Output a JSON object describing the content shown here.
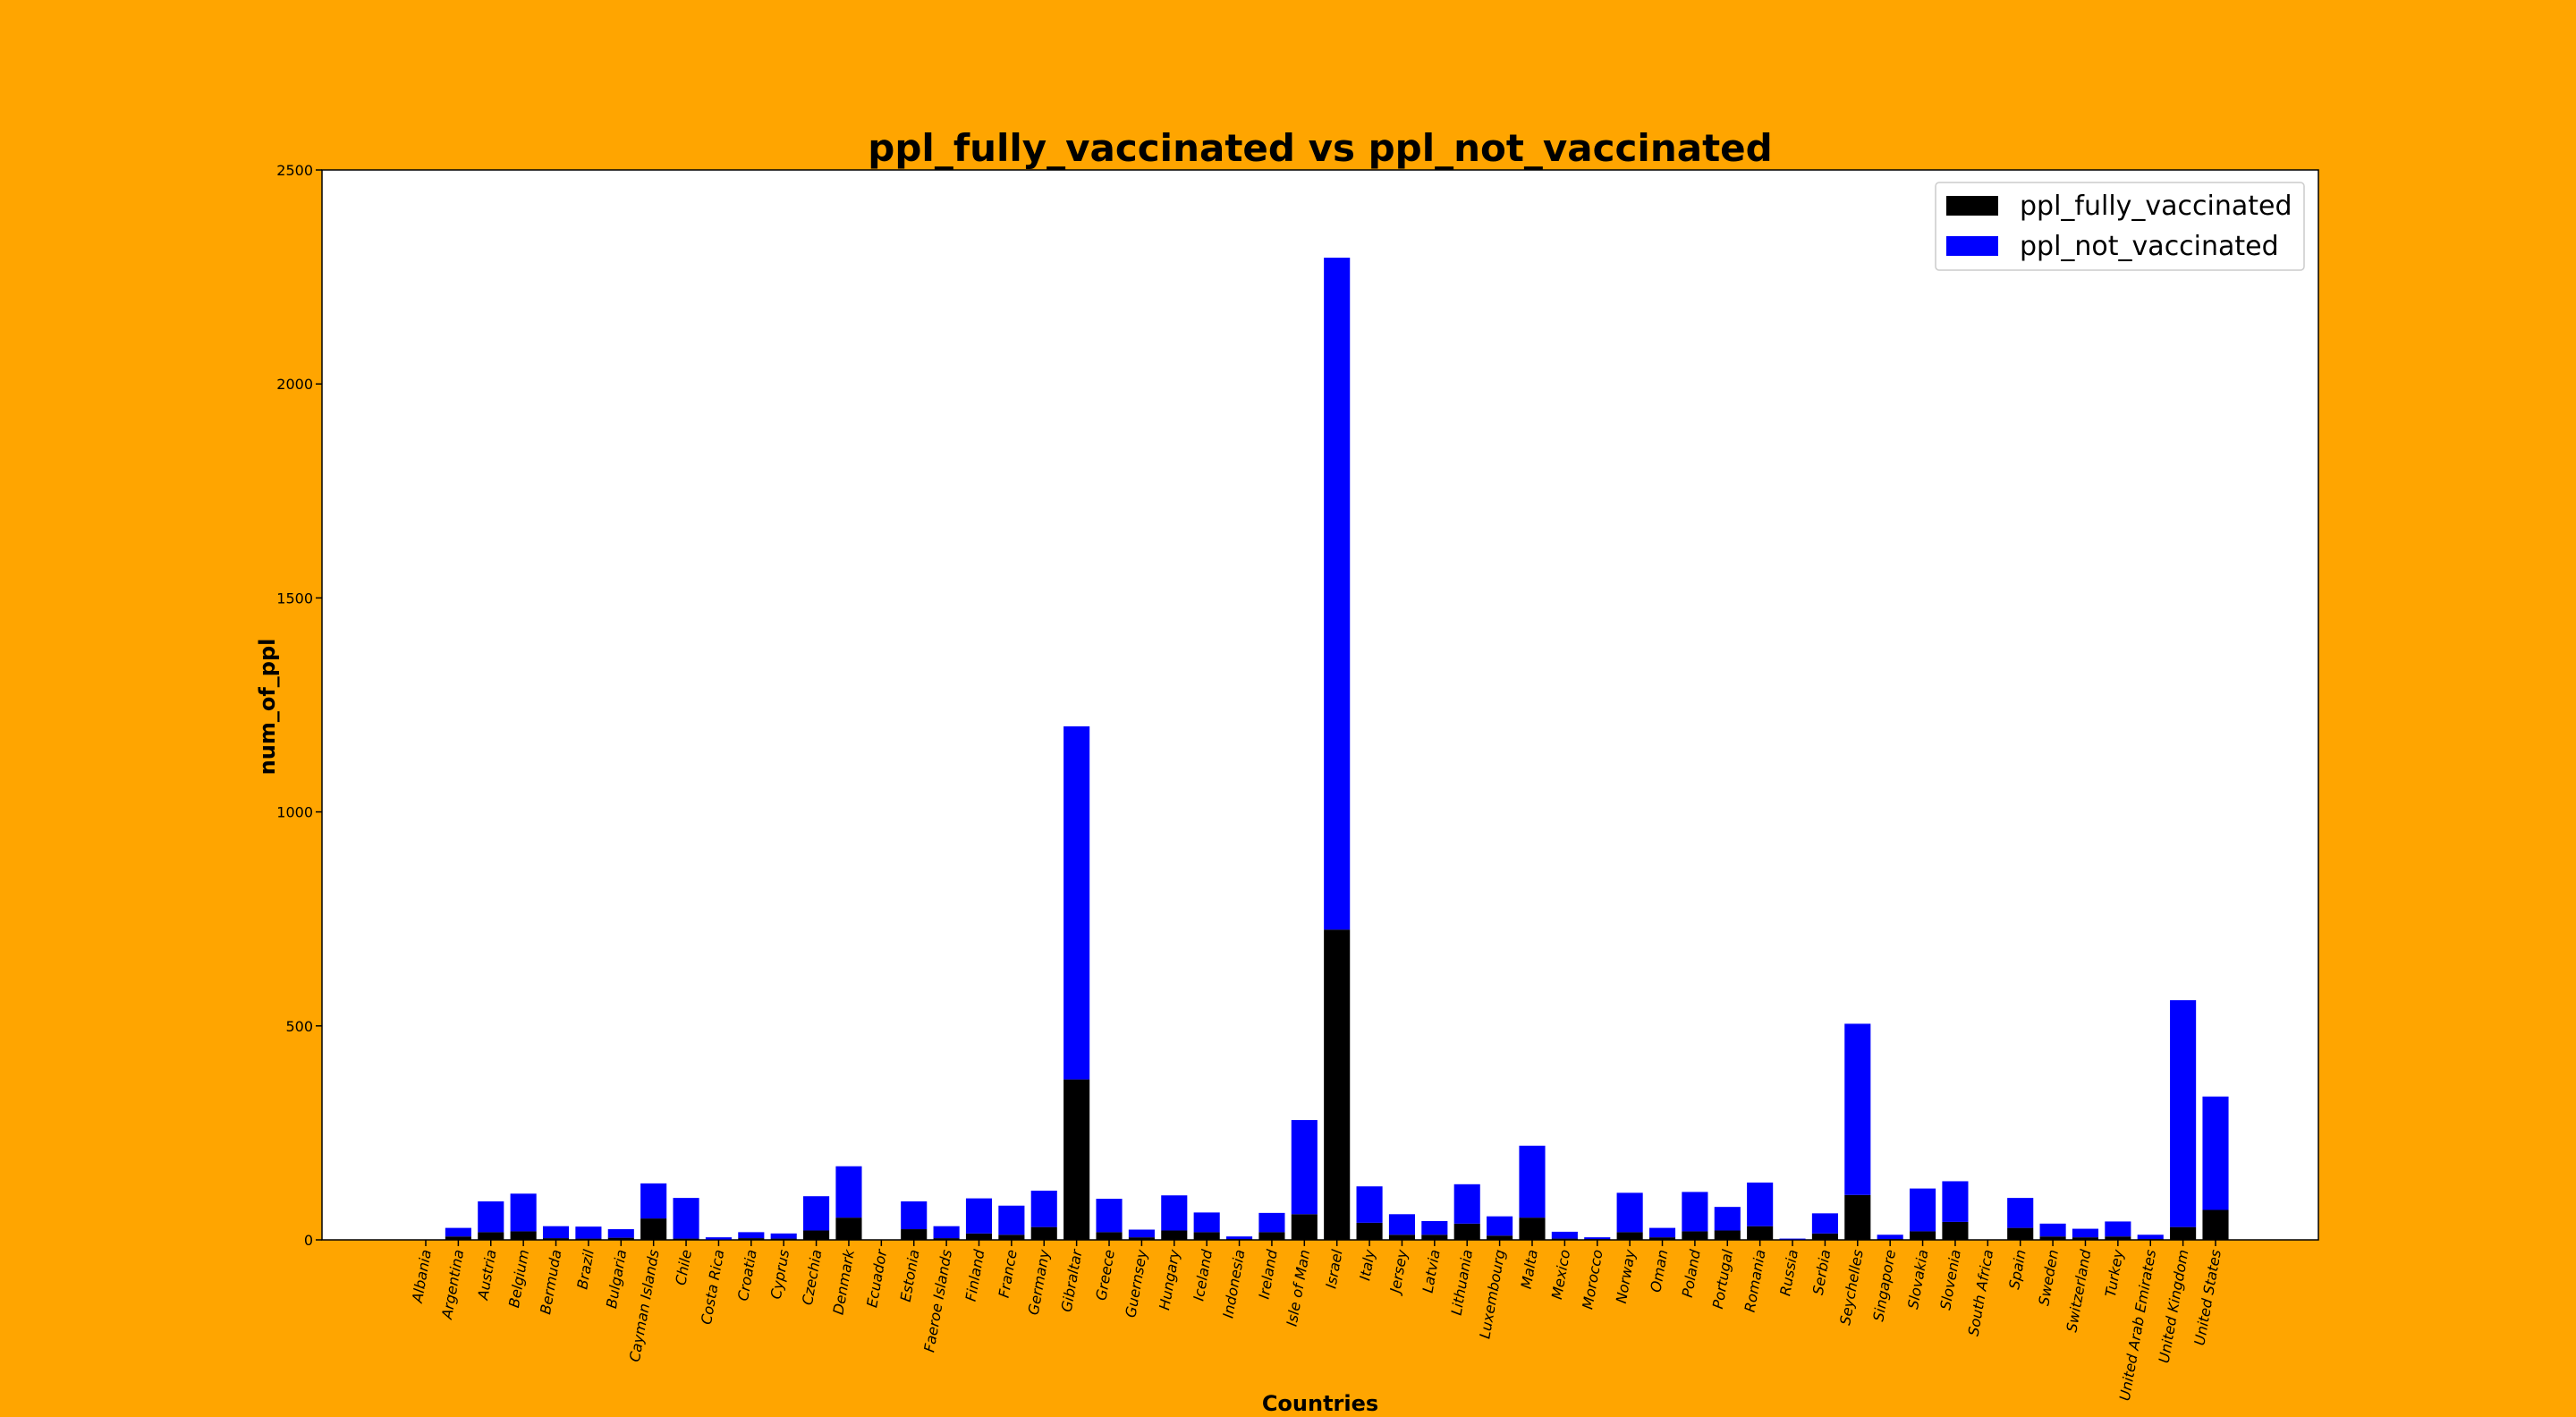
{
  "chart_data": {
    "type": "bar",
    "stacked": true,
    "title": "ppl_fully_vaccinated vs ppl_not_vaccinated",
    "xlabel": "Countries",
    "ylabel": "num_of_ppl",
    "ylim": [
      0,
      2500
    ],
    "yticks": [
      0,
      500,
      1000,
      1500,
      2000,
      2500
    ],
    "grid": false,
    "legend_position": "top-right",
    "categories": [
      "Albania",
      "Argentina",
      "Austria",
      "Belgium",
      "Bermuda",
      "Brazil",
      "Bulgaria",
      "Cayman Islands",
      "Chile",
      "Costa Rica",
      "Croatia",
      "Cyprus",
      "Czechia",
      "Denmark",
      "Ecuador",
      "Estonia",
      "Faeroe Islands",
      "Finland",
      "France",
      "Germany",
      "Gibraltar",
      "Greece",
      "Guernsey",
      "Hungary",
      "Iceland",
      "Indonesia",
      "Ireland",
      "Isle of Man",
      "Israel",
      "Italy",
      "Jersey",
      "Latvia",
      "Lithuania",
      "Luxembourg",
      "Malta",
      "Mexico",
      "Morocco",
      "Norway",
      "Oman",
      "Poland",
      "Portugal",
      "Romania",
      "Russia",
      "Serbia",
      "Seychelles",
      "Singapore",
      "Slovakia",
      "Slovenia",
      "South Africa",
      "Spain",
      "Sweden",
      "Switzerland",
      "Turkey",
      "United Arab Emirates",
      "United Kingdom",
      "United States"
    ],
    "series": [
      {
        "name": "ppl_fully_vaccinated",
        "color": "#000000",
        "values": [
          0,
          8,
          18,
          20,
          4,
          3,
          5,
          50,
          3,
          1,
          4,
          3,
          22,
          52,
          0,
          25,
          4,
          15,
          12,
          30,
          375,
          18,
          6,
          22,
          18,
          2,
          18,
          60,
          725,
          40,
          12,
          12,
          38,
          10,
          52,
          3,
          2,
          18,
          6,
          20,
          22,
          32,
          1,
          15,
          105,
          2,
          20,
          42,
          0,
          28,
          8,
          6,
          8,
          2,
          30,
          70
        ]
      },
      {
        "name": "ppl_not_vaccinated",
        "color": "#0000FF",
        "values": [
          0,
          20,
          72,
          88,
          28,
          28,
          20,
          82,
          95,
          5,
          14,
          12,
          80,
          120,
          0,
          65,
          28,
          82,
          68,
          85,
          825,
          78,
          18,
          82,
          46,
          6,
          45,
          220,
          1570,
          85,
          48,
          32,
          92,
          45,
          168,
          16,
          4,
          92,
          22,
          92,
          55,
          102,
          2,
          47,
          400,
          10,
          100,
          95,
          0,
          70,
          30,
          20,
          35,
          10,
          530,
          265
        ]
      }
    ]
  }
}
